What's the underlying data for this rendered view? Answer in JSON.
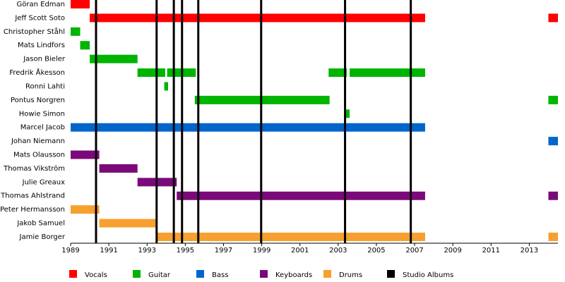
{
  "chart_data": {
    "type": "timeline",
    "xlim": [
      1989,
      2014.5
    ],
    "xticks": [
      1989,
      1991,
      1993,
      1995,
      1997,
      1999,
      2001,
      2003,
      2005,
      2007,
      2009,
      2011,
      2013
    ],
    "roles": [
      {
        "name": "Vocals",
        "color": "#ff0000"
      },
      {
        "name": "Guitar",
        "color": "#00b400"
      },
      {
        "name": "Bass",
        "color": "#0066cc"
      },
      {
        "name": "Keyboards",
        "color": "#7a0a7a"
      },
      {
        "name": "Drums",
        "color": "#f7a030"
      }
    ],
    "members": [
      {
        "name": "Göran Edman",
        "role": "Vocals",
        "periods": [
          [
            1989,
            1990
          ]
        ]
      },
      {
        "name": "Jeff Scott Soto",
        "role": "Vocals",
        "periods": [
          [
            1990,
            2007.55
          ],
          [
            2014,
            2014.5
          ]
        ]
      },
      {
        "name": "Christopher Ståhl",
        "role": "Guitar",
        "periods": [
          [
            1989,
            1989.5
          ]
        ]
      },
      {
        "name": "Mats Lindfors",
        "role": "Guitar",
        "periods": [
          [
            1989.5,
            1990
          ]
        ]
      },
      {
        "name": "Jason Bieler",
        "role": "Guitar",
        "periods": [
          [
            1990,
            1992.5
          ]
        ]
      },
      {
        "name": "Fredrik Åkesson",
        "role": "Guitar",
        "periods": [
          [
            1992.5,
            1993.95
          ],
          [
            1994.05,
            1995.55
          ],
          [
            2002.5,
            2003.45
          ],
          [
            2003.6,
            2007.55
          ]
        ]
      },
      {
        "name": "Ronni Lahti",
        "role": "Guitar",
        "periods": [
          [
            1993.9,
            1994.1
          ]
        ]
      },
      {
        "name": "Pontus Norgren",
        "role": "Guitar",
        "periods": [
          [
            1995.5,
            2002.55
          ],
          [
            2014,
            2014.5
          ]
        ]
      },
      {
        "name": "Howie Simon",
        "role": "Guitar",
        "periods": [
          [
            2003.4,
            2003.6
          ]
        ]
      },
      {
        "name": "Marcel Jacob",
        "role": "Bass",
        "periods": [
          [
            1989,
            2007.55
          ]
        ]
      },
      {
        "name": "Johan Niemann",
        "role": "Bass",
        "periods": [
          [
            2014,
            2014.5
          ]
        ]
      },
      {
        "name": "Mats Olausson",
        "role": "Keyboards",
        "periods": [
          [
            1989,
            1990.5
          ]
        ]
      },
      {
        "name": "Thomas Vikström",
        "role": "Keyboards",
        "periods": [
          [
            1990.5,
            1992.5
          ]
        ]
      },
      {
        "name": "Julie Greaux",
        "role": "Keyboards",
        "periods": [
          [
            1992.5,
            1994.55
          ]
        ]
      },
      {
        "name": "Thomas Ahlstrand",
        "role": "Keyboards",
        "periods": [
          [
            1994.55,
            2007.55
          ],
          [
            2014,
            2014.5
          ]
        ]
      },
      {
        "name": "Peter Hermansson",
        "role": "Drums",
        "periods": [
          [
            1989,
            1990.5
          ]
        ]
      },
      {
        "name": "Jakob Samuel",
        "role": "Drums",
        "periods": [
          [
            1990.5,
            1993.5
          ]
        ]
      },
      {
        "name": "Jamie Borger",
        "role": "Drums",
        "periods": [
          [
            1993.5,
            2007.55
          ],
          [
            2014,
            2014.5
          ]
        ]
      }
    ],
    "albums": {
      "name": "Studio Albums",
      "color": "#000000",
      "x": [
        1990.33,
        1993.5,
        1994.4,
        1994.83,
        1995.68,
        1998.97,
        2003.36,
        2006.8
      ]
    }
  }
}
